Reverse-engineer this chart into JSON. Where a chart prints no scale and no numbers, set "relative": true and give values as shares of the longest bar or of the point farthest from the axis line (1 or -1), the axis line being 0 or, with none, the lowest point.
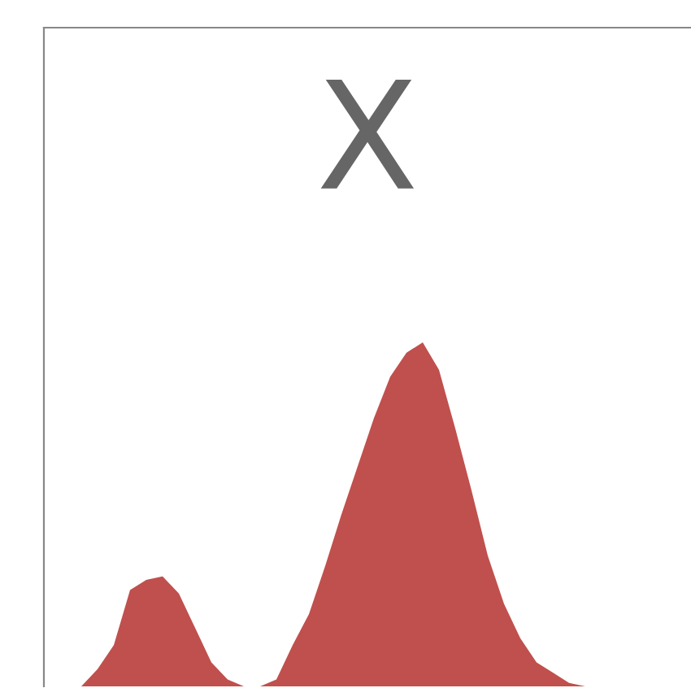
{
  "chart_data": {
    "type": "area",
    "title": "X",
    "relative": true,
    "categories": [
      null,
      null,
      null,
      null,
      null,
      null,
      null,
      null,
      null,
      null,
      null,
      null,
      null,
      null,
      null,
      null,
      null,
      null,
      null,
      null,
      null,
      null,
      null,
      null,
      null,
      null,
      null,
      null,
      null,
      null,
      null,
      null,
      null,
      null,
      null,
      null,
      null,
      null,
      null,
      null
    ],
    "series": [
      {
        "color": "#c0504d",
        "values": [
          0,
          0,
          0,
          0.05,
          0.12,
          0.28,
          0.31,
          0.32,
          0.27,
          0.17,
          0.07,
          0.02,
          0,
          0,
          0.02,
          0.12,
          0.21,
          0.35,
          0.5,
          0.64,
          0.78,
          0.9,
          0.97,
          1,
          0.92,
          0.75,
          0.57,
          0.38,
          0.24,
          0.14,
          0.07,
          0.04,
          0.01,
          0,
          0,
          0,
          0,
          0,
          0,
          0
        ]
      }
    ],
    "grid": false,
    "legend": false
  }
}
